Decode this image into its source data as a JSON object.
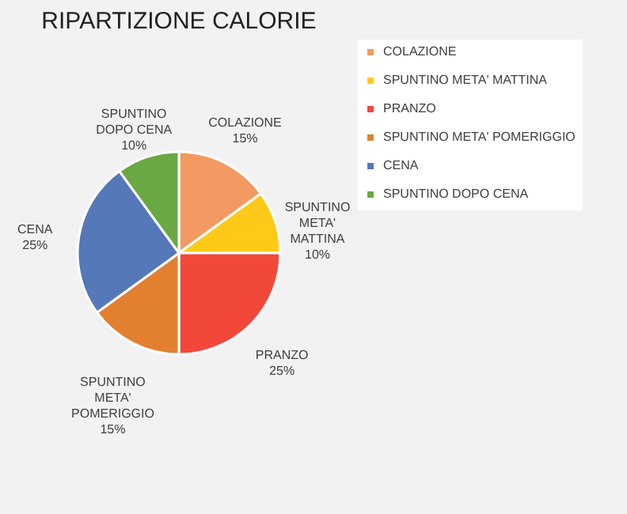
{
  "chart_data": {
    "type": "pie",
    "title": "RIPARTIZIONE CALORIE",
    "categories": [
      "COLAZIONE",
      "SPUNTINO META' MATTINA",
      "PRANZO",
      "SPUNTINO META' POMERIGGIO",
      "CENA",
      "SPUNTINO DOPO CENA"
    ],
    "values": [
      15,
      10,
      25,
      15,
      25,
      10
    ],
    "value_labels": [
      "15%",
      "10%",
      "25%",
      "15%",
      "25%",
      "10%"
    ],
    "colors": [
      "#f29a62",
      "#ffc91a",
      "#f2483a",
      "#e2802f",
      "#5578b8",
      "#6aa843"
    ],
    "legend": "right"
  }
}
